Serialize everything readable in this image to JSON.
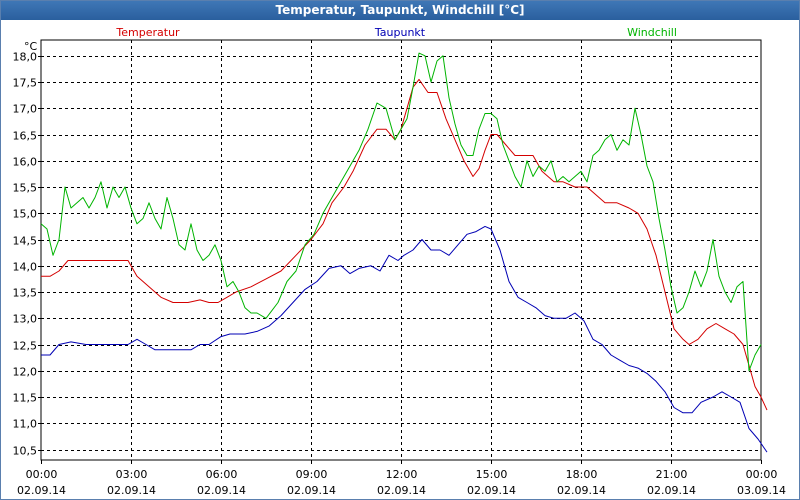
{
  "window": {
    "title": "Temperatur, Taupunkt, Windchill [°C]"
  },
  "colors": {
    "temperatur": "#d40000",
    "taupunkt": "#0000b4",
    "windchill": "#00b400",
    "grid": "#000000"
  },
  "chart_data": {
    "type": "line",
    "title": "Temperatur, Taupunkt, Windchill [°C]",
    "ylabel": "°C",
    "xlabel": "",
    "xlim": [
      0,
      24
    ],
    "ylim": [
      10.3,
      18.3
    ],
    "grid": true,
    "legend": "top",
    "yticks": [
      {
        "value": 10.5,
        "label": "10,5"
      },
      {
        "value": 11.0,
        "label": "11,0"
      },
      {
        "value": 11.5,
        "label": "11,5"
      },
      {
        "value": 12.0,
        "label": "12,0"
      },
      {
        "value": 12.5,
        "label": "12,5"
      },
      {
        "value": 13.0,
        "label": "13,0"
      },
      {
        "value": 13.5,
        "label": "13,5"
      },
      {
        "value": 14.0,
        "label": "14,0"
      },
      {
        "value": 14.5,
        "label": "14,5"
      },
      {
        "value": 15.0,
        "label": "15,0"
      },
      {
        "value": 15.5,
        "label": "15,5"
      },
      {
        "value": 16.0,
        "label": "16,0"
      },
      {
        "value": 16.5,
        "label": "16,5"
      },
      {
        "value": 17.0,
        "label": "17,0"
      },
      {
        "value": 17.5,
        "label": "17,5"
      },
      {
        "value": 18.0,
        "label": "18,0"
      }
    ],
    "xticks": [
      {
        "value": 0,
        "time": "00:00",
        "date": "02.09.14"
      },
      {
        "value": 3,
        "time": "03:00",
        "date": "02.09.14"
      },
      {
        "value": 6,
        "time": "06:00",
        "date": "02.09.14"
      },
      {
        "value": 9,
        "time": "09:00",
        "date": "02.09.14"
      },
      {
        "value": 12,
        "time": "12:00",
        "date": "02.09.14"
      },
      {
        "value": 15,
        "time": "15:00",
        "date": "02.09.14"
      },
      {
        "value": 18,
        "time": "18:00",
        "date": "02.09.14"
      },
      {
        "value": 21,
        "time": "21:00",
        "date": "02.09.14"
      },
      {
        "value": 24,
        "time": "00:00",
        "date": "03.09.14"
      }
    ],
    "series": [
      {
        "name": "Temperatur",
        "color": "#d40000",
        "points": [
          [
            0,
            13.8
          ],
          [
            0.3,
            13.8
          ],
          [
            0.6,
            13.9
          ],
          [
            0.9,
            14.1
          ],
          [
            1.5,
            14.1
          ],
          [
            2.2,
            14.1
          ],
          [
            2.9,
            14.1
          ],
          [
            3.2,
            13.8
          ],
          [
            3.6,
            13.6
          ],
          [
            4.0,
            13.4
          ],
          [
            4.4,
            13.3
          ],
          [
            4.9,
            13.3
          ],
          [
            5.3,
            13.35
          ],
          [
            5.6,
            13.3
          ],
          [
            5.9,
            13.3
          ],
          [
            6.2,
            13.4
          ],
          [
            6.5,
            13.5
          ],
          [
            7.0,
            13.6
          ],
          [
            7.5,
            13.75
          ],
          [
            8.0,
            13.9
          ],
          [
            8.5,
            14.2
          ],
          [
            9.0,
            14.5
          ],
          [
            9.4,
            14.8
          ],
          [
            9.7,
            15.2
          ],
          [
            10.1,
            15.5
          ],
          [
            10.4,
            15.8
          ],
          [
            10.8,
            16.3
          ],
          [
            11.2,
            16.6
          ],
          [
            11.5,
            16.6
          ],
          [
            11.8,
            16.4
          ],
          [
            12.0,
            16.6
          ],
          [
            12.2,
            17.0
          ],
          [
            12.4,
            17.4
          ],
          [
            12.6,
            17.55
          ],
          [
            12.9,
            17.3
          ],
          [
            13.2,
            17.3
          ],
          [
            13.5,
            16.8
          ],
          [
            13.8,
            16.4
          ],
          [
            14.1,
            16.0
          ],
          [
            14.4,
            15.7
          ],
          [
            14.6,
            15.85
          ],
          [
            14.8,
            16.2
          ],
          [
            15.0,
            16.5
          ],
          [
            15.2,
            16.5
          ],
          [
            15.5,
            16.3
          ],
          [
            15.8,
            16.1
          ],
          [
            16.1,
            16.1
          ],
          [
            16.4,
            16.1
          ],
          [
            16.7,
            15.8
          ],
          [
            17.1,
            15.6
          ],
          [
            17.4,
            15.6
          ],
          [
            17.8,
            15.5
          ],
          [
            18.2,
            15.5
          ],
          [
            18.5,
            15.35
          ],
          [
            18.8,
            15.2
          ],
          [
            19.2,
            15.2
          ],
          [
            19.6,
            15.1
          ],
          [
            19.9,
            15.0
          ],
          [
            20.2,
            14.7
          ],
          [
            20.5,
            14.2
          ],
          [
            20.8,
            13.5
          ],
          [
            21.1,
            12.8
          ],
          [
            21.4,
            12.6
          ],
          [
            21.6,
            12.5
          ],
          [
            21.9,
            12.6
          ],
          [
            22.2,
            12.8
          ],
          [
            22.5,
            12.9
          ],
          [
            22.8,
            12.8
          ],
          [
            23.1,
            12.7
          ],
          [
            23.4,
            12.5
          ],
          [
            23.6,
            12.1
          ],
          [
            23.8,
            11.7
          ],
          [
            24.0,
            11.5
          ],
          [
            24.2,
            11.25
          ]
        ]
      },
      {
        "name": "Taupunkt",
        "color": "#0000b4",
        "points": [
          [
            0,
            12.3
          ],
          [
            0.3,
            12.3
          ],
          [
            0.6,
            12.5
          ],
          [
            1.0,
            12.55
          ],
          [
            1.5,
            12.5
          ],
          [
            2.0,
            12.5
          ],
          [
            2.5,
            12.5
          ],
          [
            2.9,
            12.5
          ],
          [
            3.2,
            12.6
          ],
          [
            3.5,
            12.5
          ],
          [
            3.8,
            12.4
          ],
          [
            4.1,
            12.4
          ],
          [
            4.5,
            12.4
          ],
          [
            5.0,
            12.4
          ],
          [
            5.3,
            12.5
          ],
          [
            5.6,
            12.5
          ],
          [
            6.0,
            12.65
          ],
          [
            6.3,
            12.7
          ],
          [
            6.8,
            12.7
          ],
          [
            7.2,
            12.75
          ],
          [
            7.6,
            12.85
          ],
          [
            8.0,
            13.05
          ],
          [
            8.4,
            13.3
          ],
          [
            8.8,
            13.55
          ],
          [
            9.2,
            13.7
          ],
          [
            9.6,
            13.95
          ],
          [
            10.0,
            14.0
          ],
          [
            10.3,
            13.85
          ],
          [
            10.6,
            13.95
          ],
          [
            11.0,
            14.0
          ],
          [
            11.3,
            13.9
          ],
          [
            11.6,
            14.2
          ],
          [
            11.9,
            14.1
          ],
          [
            12.1,
            14.2
          ],
          [
            12.4,
            14.3
          ],
          [
            12.7,
            14.5
          ],
          [
            13.0,
            14.3
          ],
          [
            13.3,
            14.3
          ],
          [
            13.6,
            14.2
          ],
          [
            13.9,
            14.4
          ],
          [
            14.2,
            14.6
          ],
          [
            14.5,
            14.65
          ],
          [
            14.8,
            14.75
          ],
          [
            15.0,
            14.7
          ],
          [
            15.3,
            14.3
          ],
          [
            15.6,
            13.7
          ],
          [
            15.9,
            13.4
          ],
          [
            16.2,
            13.3
          ],
          [
            16.5,
            13.2
          ],
          [
            16.8,
            13.05
          ],
          [
            17.1,
            13.0
          ],
          [
            17.5,
            13.0
          ],
          [
            17.8,
            13.1
          ],
          [
            18.1,
            12.95
          ],
          [
            18.4,
            12.6
          ],
          [
            18.7,
            12.5
          ],
          [
            19.0,
            12.3
          ],
          [
            19.3,
            12.2
          ],
          [
            19.6,
            12.1
          ],
          [
            19.9,
            12.05
          ],
          [
            20.2,
            11.95
          ],
          [
            20.5,
            11.8
          ],
          [
            20.8,
            11.6
          ],
          [
            21.1,
            11.3
          ],
          [
            21.4,
            11.2
          ],
          [
            21.7,
            11.2
          ],
          [
            22.0,
            11.4
          ],
          [
            22.4,
            11.5
          ],
          [
            22.7,
            11.6
          ],
          [
            23.0,
            11.5
          ],
          [
            23.3,
            11.4
          ],
          [
            23.6,
            10.9
          ],
          [
            23.9,
            10.7
          ],
          [
            24.2,
            10.45
          ]
        ]
      },
      {
        "name": "Windchill",
        "color": "#00b400",
        "points": [
          [
            0,
            14.8
          ],
          [
            0.2,
            14.7
          ],
          [
            0.4,
            14.2
          ],
          [
            0.6,
            14.5
          ],
          [
            0.8,
            15.5
          ],
          [
            1.0,
            15.1
          ],
          [
            1.2,
            15.2
          ],
          [
            1.4,
            15.3
          ],
          [
            1.6,
            15.1
          ],
          [
            1.8,
            15.3
          ],
          [
            2.0,
            15.6
          ],
          [
            2.2,
            15.1
          ],
          [
            2.4,
            15.5
          ],
          [
            2.6,
            15.3
          ],
          [
            2.8,
            15.5
          ],
          [
            3.0,
            15.1
          ],
          [
            3.2,
            14.8
          ],
          [
            3.4,
            14.9
          ],
          [
            3.6,
            15.2
          ],
          [
            3.8,
            14.9
          ],
          [
            4.0,
            14.7
          ],
          [
            4.2,
            15.3
          ],
          [
            4.4,
            14.9
          ],
          [
            4.6,
            14.4
          ],
          [
            4.8,
            14.3
          ],
          [
            5.0,
            14.8
          ],
          [
            5.2,
            14.3
          ],
          [
            5.4,
            14.1
          ],
          [
            5.6,
            14.2
          ],
          [
            5.8,
            14.4
          ],
          [
            6.0,
            14.1
          ],
          [
            6.2,
            13.6
          ],
          [
            6.4,
            13.7
          ],
          [
            6.6,
            13.5
          ],
          [
            6.8,
            13.2
          ],
          [
            7.0,
            13.1
          ],
          [
            7.2,
            13.1
          ],
          [
            7.5,
            13.0
          ],
          [
            7.7,
            13.15
          ],
          [
            7.9,
            13.3
          ],
          [
            8.2,
            13.7
          ],
          [
            8.5,
            13.9
          ],
          [
            8.8,
            14.4
          ],
          [
            9.1,
            14.6
          ],
          [
            9.4,
            15.0
          ],
          [
            9.7,
            15.3
          ],
          [
            10.0,
            15.6
          ],
          [
            10.3,
            15.9
          ],
          [
            10.6,
            16.2
          ],
          [
            10.9,
            16.6
          ],
          [
            11.2,
            17.1
          ],
          [
            11.5,
            17.0
          ],
          [
            11.8,
            16.4
          ],
          [
            12.0,
            16.6
          ],
          [
            12.2,
            16.8
          ],
          [
            12.4,
            17.4
          ],
          [
            12.6,
            18.05
          ],
          [
            12.8,
            18.0
          ],
          [
            13.0,
            17.5
          ],
          [
            13.2,
            17.9
          ],
          [
            13.4,
            18.0
          ],
          [
            13.6,
            17.2
          ],
          [
            13.8,
            16.7
          ],
          [
            14.0,
            16.3
          ],
          [
            14.2,
            16.1
          ],
          [
            14.4,
            16.1
          ],
          [
            14.6,
            16.6
          ],
          [
            14.8,
            16.9
          ],
          [
            15.0,
            16.9
          ],
          [
            15.2,
            16.8
          ],
          [
            15.4,
            16.3
          ],
          [
            15.6,
            16.0
          ],
          [
            15.8,
            15.7
          ],
          [
            16.0,
            15.5
          ],
          [
            16.2,
            16.0
          ],
          [
            16.4,
            15.7
          ],
          [
            16.6,
            15.9
          ],
          [
            16.8,
            15.8
          ],
          [
            17.0,
            16.0
          ],
          [
            17.2,
            15.6
          ],
          [
            17.4,
            15.7
          ],
          [
            17.6,
            15.6
          ],
          [
            17.8,
            15.7
          ],
          [
            18.0,
            15.8
          ],
          [
            18.2,
            15.6
          ],
          [
            18.4,
            16.1
          ],
          [
            18.6,
            16.2
          ],
          [
            18.8,
            16.4
          ],
          [
            19.0,
            16.5
          ],
          [
            19.2,
            16.2
          ],
          [
            19.4,
            16.4
          ],
          [
            19.6,
            16.3
          ],
          [
            19.8,
            17.0
          ],
          [
            20.0,
            16.5
          ],
          [
            20.2,
            15.9
          ],
          [
            20.4,
            15.6
          ],
          [
            20.6,
            14.9
          ],
          [
            20.8,
            14.3
          ],
          [
            21.0,
            13.6
          ],
          [
            21.2,
            13.1
          ],
          [
            21.4,
            13.2
          ],
          [
            21.6,
            13.5
          ],
          [
            21.8,
            13.9
          ],
          [
            22.0,
            13.6
          ],
          [
            22.2,
            13.9
          ],
          [
            22.4,
            14.5
          ],
          [
            22.6,
            13.8
          ],
          [
            22.8,
            13.5
          ],
          [
            23.0,
            13.3
          ],
          [
            23.2,
            13.6
          ],
          [
            23.4,
            13.7
          ],
          [
            23.6,
            12.0
          ],
          [
            23.8,
            12.3
          ],
          [
            24.0,
            12.5
          ]
        ]
      }
    ]
  }
}
